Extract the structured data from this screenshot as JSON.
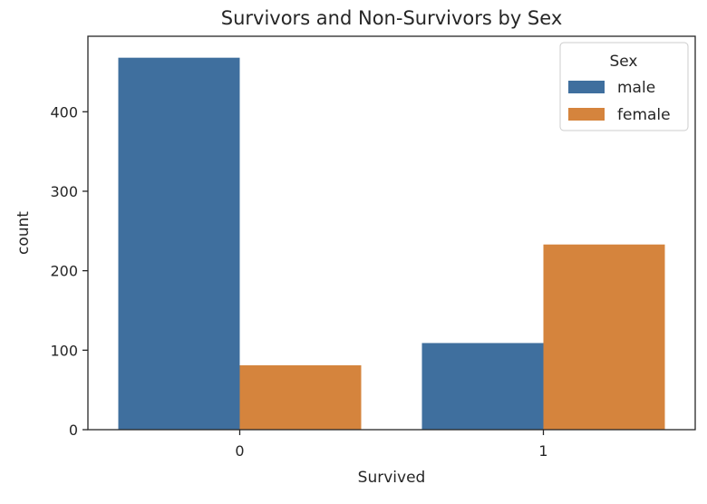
{
  "chart_data": {
    "type": "bar",
    "title": "Survivors and Non-Survivors by Sex",
    "xlabel": "Survived",
    "ylabel": "count",
    "categories": [
      "0",
      "1"
    ],
    "series": [
      {
        "name": "male",
        "color": "#3f6f9e",
        "values": [
          468,
          109
        ]
      },
      {
        "name": "female",
        "color": "#d5843d",
        "values": [
          81,
          233
        ]
      }
    ],
    "ylim": [
      0,
      495
    ],
    "yticks": [
      0,
      100,
      200,
      300,
      400
    ],
    "grid": false,
    "legend": {
      "title": "Sex",
      "placement": "top-right"
    }
  }
}
